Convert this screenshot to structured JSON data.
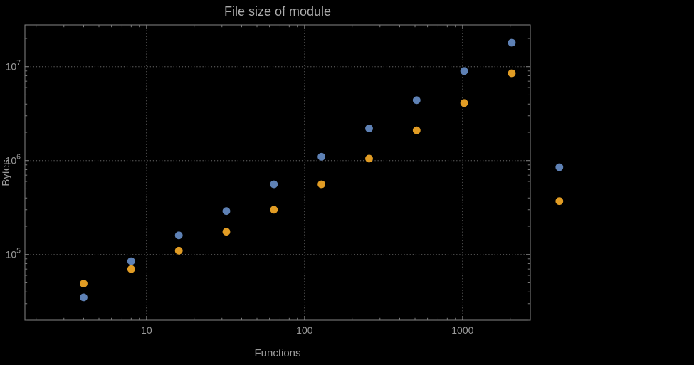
{
  "chart_data": {
    "type": "scatter",
    "title": "File size of module",
    "xlabel": "Functions",
    "ylabel": "Bytes",
    "log_x": true,
    "log_y": true,
    "x": [
      4,
      8,
      16,
      32,
      64,
      128,
      256,
      512,
      1024,
      2048,
      4096
    ],
    "series": [
      {
        "name": "blue-series",
        "color": "#5e81b5",
        "values": [
          35000,
          85000,
          160000,
          290000,
          560000,
          1100000,
          2200000,
          4400000,
          9000000,
          18000000,
          850000
        ]
      },
      {
        "name": "orange-series",
        "color": "#e19c24",
        "values": [
          49000,
          70000,
          110000,
          175000,
          300000,
          560000,
          1050000,
          2100000,
          4100000,
          8500000,
          370000
        ]
      }
    ],
    "x_ticks": [
      10,
      100,
      1000
    ],
    "x_tick_labels": [
      "10",
      "100",
      "1000"
    ],
    "y_ticks": [
      100000,
      1000000,
      10000000
    ],
    "y_tick_labels": [
      {
        "base": "10",
        "exp": "5"
      },
      {
        "base": "10",
        "exp": "6"
      },
      {
        "base": "10",
        "exp": "7"
      }
    ],
    "xlim": [
      1.7,
      2683
    ],
    "ylim": [
      20000,
      27900000
    ],
    "grid": "dotted",
    "legend": "none"
  }
}
